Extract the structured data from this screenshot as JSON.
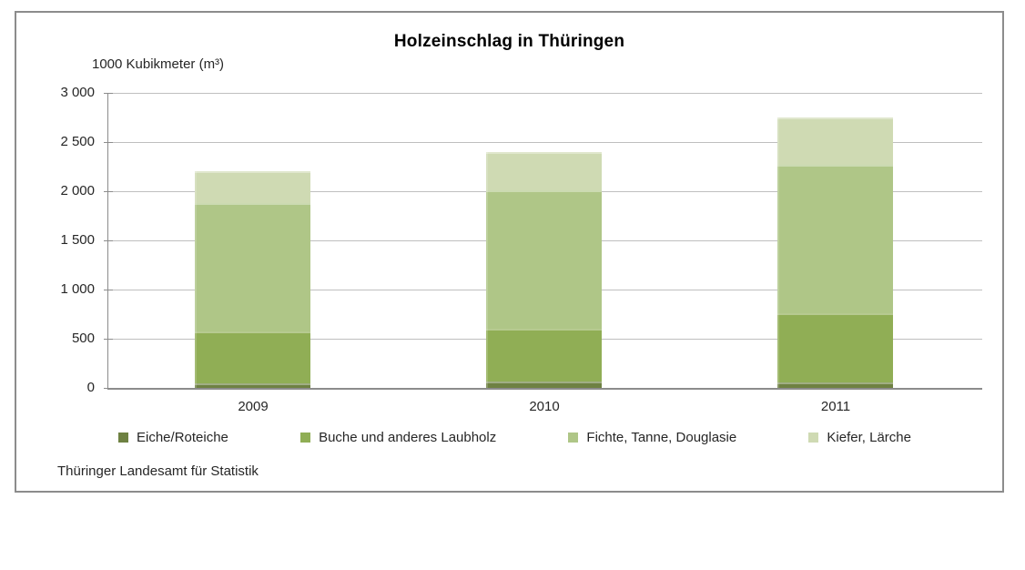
{
  "title": "Holzeinschlag in Thüringen",
  "axis_title": "1000 Kubikmeter (m³)",
  "source": "Thüringer Landesamt für Statistik",
  "colors": {
    "border_grey": "#8c8c8c",
    "gridline_grey": "#bfbfbf",
    "text": "#262626",
    "eiche_green": "#6e8142",
    "buche_green": "#90ae55",
    "fichte_green": "#afc687",
    "kiefer_green": "#cfdab3"
  },
  "chart_data": {
    "type": "bar",
    "stacked": true,
    "title": "Holzeinschlag in Thüringen",
    "ylabel": "1000 Kubikmeter (m³)",
    "xlabel": "",
    "categories": [
      "2009",
      "2010",
      "2011"
    ],
    "series": [
      {
        "name": "Eiche/Roteiche",
        "color": "#6e8142",
        "values": [
          50,
          65,
          60
        ]
      },
      {
        "name": "Buche und anderes Laubholz",
        "color": "#90ae55",
        "values": [
          525,
          535,
          700
        ]
      },
      {
        "name": "Fichte, Tanne, Douglasie",
        "color": "#afc687",
        "values": [
          1305,
          1410,
          1510
        ]
      },
      {
        "name": "Kiefer, Lärche",
        "color": "#cfdab3",
        "values": [
          320,
          390,
          480
        ]
      }
    ],
    "totals": [
      2200,
      2400,
      2750
    ],
    "ylim": [
      0,
      3000
    ],
    "ytick_step": 500,
    "ytick_labels": [
      "0",
      "500",
      "1 000",
      "1 500",
      "2 000",
      "2 500",
      "3 000"
    ],
    "grid": true,
    "legend_position": "bottom"
  }
}
